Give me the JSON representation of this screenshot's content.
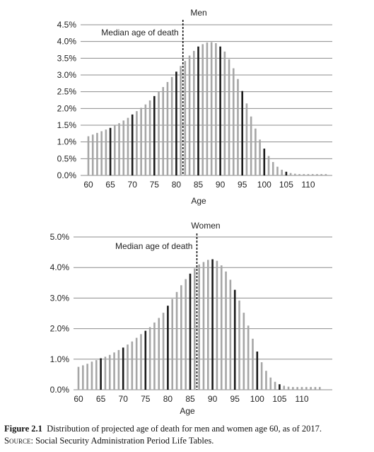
{
  "chart_data": [
    {
      "type": "bar",
      "title": "Men",
      "xlabel": "Age",
      "ylabel": "",
      "ylim": [
        0,
        4.5
      ],
      "yticks": [
        "0.0%",
        "0.5%",
        "1.0%",
        "1.5%",
        "2.0%",
        "2.5%",
        "3.0%",
        "3.5%",
        "4.0%",
        "4.5%"
      ],
      "xticks": [
        "60",
        "65",
        "70",
        "75",
        "80",
        "85",
        "90",
        "95",
        "100",
        "105",
        "110"
      ],
      "grid": "horizontal",
      "annotation": {
        "label": "Median age of death",
        "x": 81.5
      },
      "ages": [
        60,
        61,
        62,
        63,
        64,
        65,
        66,
        67,
        68,
        69,
        70,
        71,
        72,
        73,
        74,
        75,
        76,
        77,
        78,
        79,
        80,
        81,
        82,
        83,
        84,
        85,
        86,
        87,
        88,
        89,
        90,
        91,
        92,
        93,
        94,
        95,
        96,
        97,
        98,
        99,
        100,
        101,
        102,
        103,
        104,
        105,
        106,
        107,
        108,
        109,
        110,
        111,
        112,
        113,
        114
      ],
      "values": [
        1.17,
        1.22,
        1.27,
        1.32,
        1.37,
        1.42,
        1.5,
        1.56,
        1.64,
        1.72,
        1.82,
        1.92,
        2.02,
        2.12,
        2.24,
        2.37,
        2.5,
        2.64,
        2.79,
        2.94,
        3.1,
        3.27,
        3.42,
        3.58,
        3.72,
        3.85,
        3.92,
        3.97,
        3.98,
        3.95,
        3.85,
        3.7,
        3.47,
        3.2,
        2.88,
        2.52,
        2.15,
        1.76,
        1.4,
        1.07,
        0.8,
        0.58,
        0.4,
        0.26,
        0.17,
        0.11,
        0.07,
        0.05,
        0.04,
        0.04,
        0.04,
        0.04,
        0.04,
        0.04,
        0.04
      ],
      "highlighted_ages": [
        65,
        70,
        75,
        80,
        85,
        90,
        95,
        100,
        105
      ]
    },
    {
      "type": "bar",
      "title": "Women",
      "xlabel": "Age",
      "ylabel": "",
      "ylim": [
        0,
        5
      ],
      "yticks": [
        "0.0%",
        "1.0%",
        "2.0%",
        "3.0%",
        "4.0%",
        "5.0%"
      ],
      "xticks": [
        "60",
        "65",
        "70",
        "75",
        "80",
        "85",
        "90",
        "95",
        "100",
        "105",
        "110"
      ],
      "grid": "horizontal",
      "annotation": {
        "label": "Median age of death",
        "x": 86.5
      },
      "ages": [
        60,
        61,
        62,
        63,
        64,
        65,
        66,
        67,
        68,
        69,
        70,
        71,
        72,
        73,
        74,
        75,
        76,
        77,
        78,
        79,
        80,
        81,
        82,
        83,
        84,
        85,
        86,
        87,
        88,
        89,
        90,
        91,
        92,
        93,
        94,
        95,
        96,
        97,
        98,
        99,
        100,
        101,
        102,
        103,
        104,
        105,
        106,
        107,
        108,
        109,
        110,
        111,
        112,
        113,
        114
      ],
      "values": [
        0.75,
        0.8,
        0.85,
        0.92,
        0.97,
        1.03,
        1.08,
        1.14,
        1.22,
        1.3,
        1.38,
        1.48,
        1.58,
        1.7,
        1.82,
        1.93,
        2.05,
        2.2,
        2.35,
        2.52,
        2.75,
        2.97,
        3.2,
        3.42,
        3.62,
        3.8,
        3.97,
        4.1,
        4.18,
        4.25,
        4.27,
        4.22,
        4.07,
        3.87,
        3.6,
        3.27,
        2.92,
        2.52,
        2.1,
        1.67,
        1.25,
        0.9,
        0.62,
        0.4,
        0.26,
        0.18,
        0.13,
        0.1,
        0.09,
        0.09,
        0.09,
        0.09,
        0.09,
        0.09,
        0.09
      ],
      "highlighted_ages": [
        65,
        70,
        75,
        80,
        85,
        90,
        95,
        100,
        105
      ]
    }
  ],
  "caption": {
    "figure_label": "Figure 2.1",
    "text": "Distribution of projected age of death for men and women age 60, as of 2017.",
    "source_label": "Source:",
    "source_text": "Social Security Administration Period Life Tables."
  },
  "colors": {
    "bar": "#a6a6a6",
    "bar_highlight": "#1a1a1a",
    "grid": "#8c8c8c",
    "median_line": "#111111"
  }
}
